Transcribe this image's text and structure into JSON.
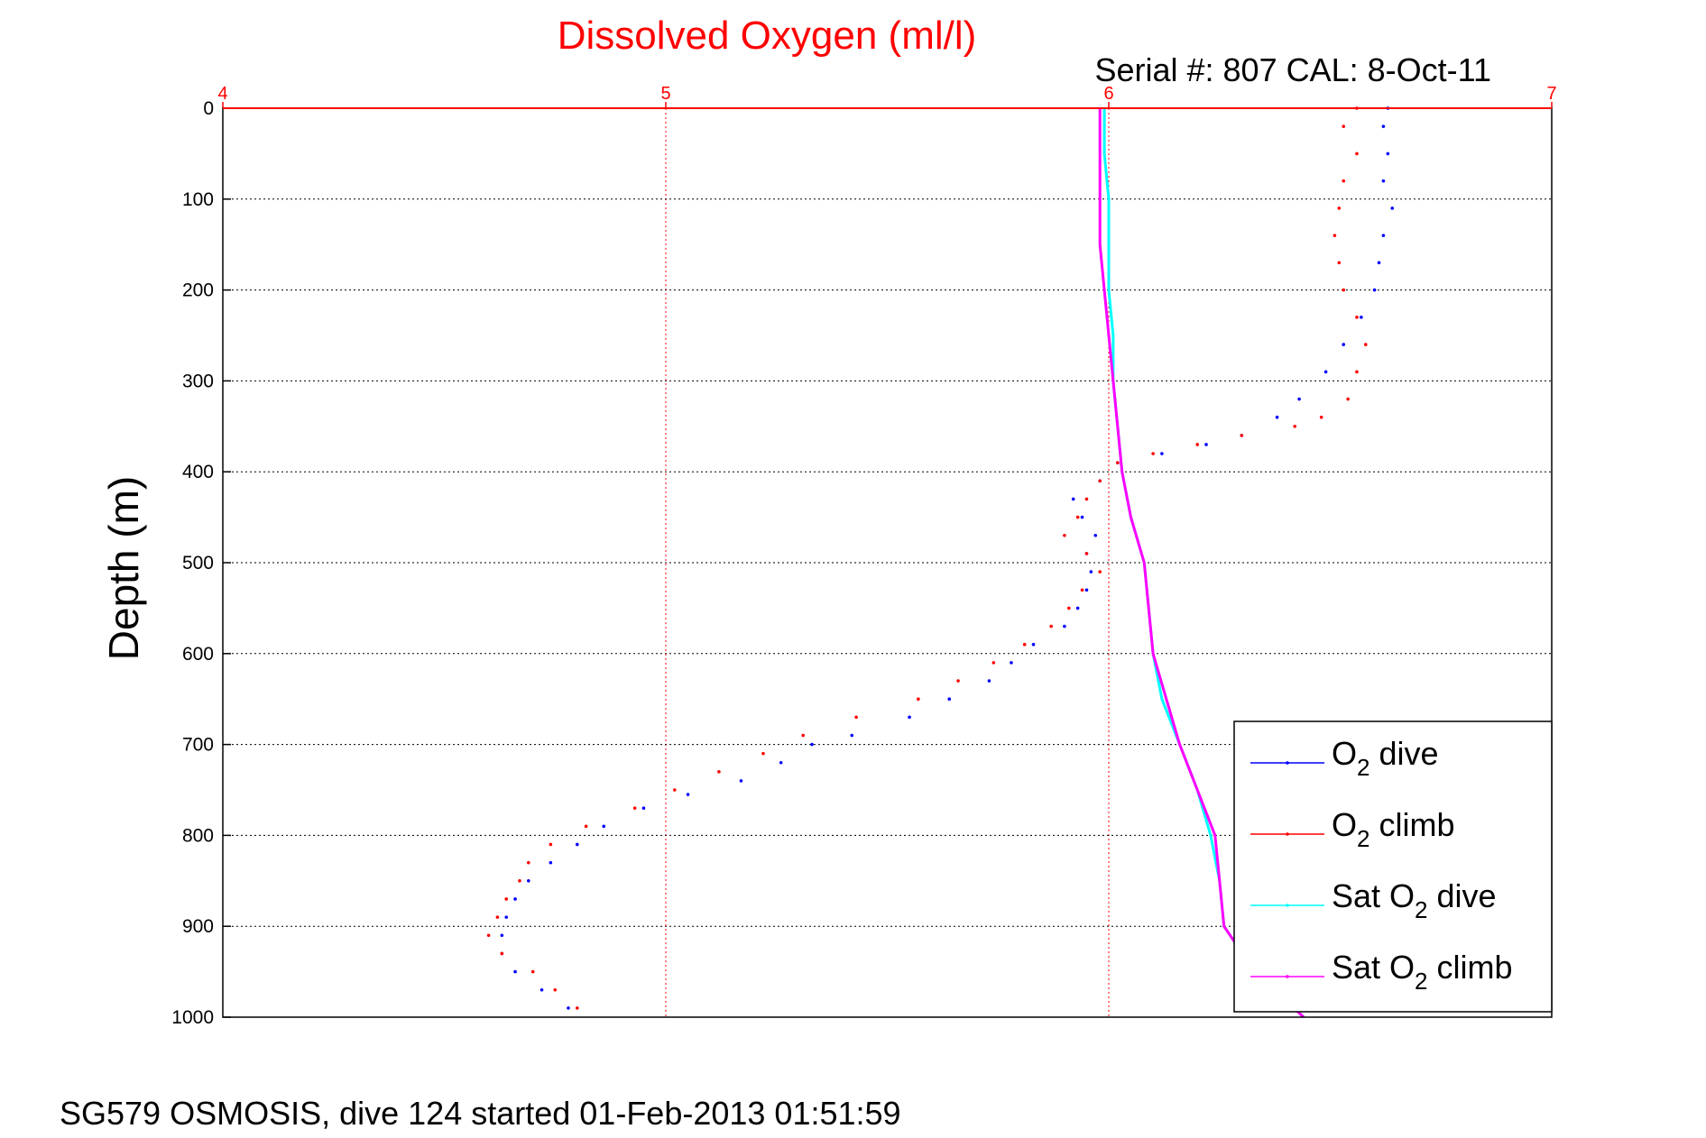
{
  "chart_data": {
    "type": "scatter",
    "title": "Dissolved Oxygen (ml/l)",
    "subtitle": "Serial #: 807  CAL: 8-Oct-11",
    "ylabel": "Depth (m)",
    "xlabel": "",
    "footer": "SG579 OSMOSIS, dive 124 started 01-Feb-2013 01:51:59",
    "xlim": [
      4,
      7
    ],
    "ylim": [
      0,
      1000
    ],
    "y_reversed": true,
    "x_axis_position": "top",
    "grid": true,
    "legend_position": "bottom-right",
    "x_ticks": [
      "4",
      "5",
      "6",
      "7"
    ],
    "y_ticks": [
      "0",
      "100",
      "200",
      "300",
      "400",
      "500",
      "600",
      "700",
      "800",
      "900",
      "1000"
    ],
    "series": [
      {
        "name": "O2 dive",
        "label_main": "O",
        "label_sub": "2",
        "label_rest": " dive",
        "color": "#0000ff",
        "style": "dots",
        "points": [
          [
            6.63,
            0
          ],
          [
            6.62,
            20
          ],
          [
            6.63,
            50
          ],
          [
            6.62,
            80
          ],
          [
            6.64,
            110
          ],
          [
            6.62,
            140
          ],
          [
            6.61,
            170
          ],
          [
            6.6,
            200
          ],
          [
            6.57,
            230
          ],
          [
            6.53,
            260
          ],
          [
            6.49,
            290
          ],
          [
            6.43,
            320
          ],
          [
            6.38,
            340
          ],
          [
            6.3,
            360
          ],
          [
            6.22,
            370
          ],
          [
            6.12,
            380
          ],
          [
            6.02,
            390
          ],
          [
            5.98,
            410
          ],
          [
            5.92,
            430
          ],
          [
            5.94,
            450
          ],
          [
            5.97,
            470
          ],
          [
            5.95,
            490
          ],
          [
            5.96,
            510
          ],
          [
            5.95,
            530
          ],
          [
            5.93,
            550
          ],
          [
            5.9,
            570
          ],
          [
            5.83,
            590
          ],
          [
            5.78,
            610
          ],
          [
            5.73,
            630
          ],
          [
            5.64,
            650
          ],
          [
            5.55,
            670
          ],
          [
            5.42,
            690
          ],
          [
            5.33,
            700
          ],
          [
            5.26,
            720
          ],
          [
            5.17,
            740
          ],
          [
            5.05,
            755
          ],
          [
            4.95,
            770
          ],
          [
            4.86,
            790
          ],
          [
            4.8,
            810
          ],
          [
            4.74,
            830
          ],
          [
            4.69,
            850
          ],
          [
            4.66,
            870
          ],
          [
            4.64,
            890
          ],
          [
            4.63,
            910
          ],
          [
            4.63,
            930
          ],
          [
            4.66,
            950
          ],
          [
            4.72,
            970
          ],
          [
            4.78,
            990
          ]
        ]
      },
      {
        "name": "O2 climb",
        "label_main": "O",
        "label_sub": "2",
        "label_rest": " climb",
        "color": "#ff0000",
        "style": "dots",
        "points": [
          [
            6.56,
            0
          ],
          [
            6.53,
            20
          ],
          [
            6.56,
            50
          ],
          [
            6.53,
            80
          ],
          [
            6.52,
            110
          ],
          [
            6.51,
            140
          ],
          [
            6.52,
            170
          ],
          [
            6.53,
            200
          ],
          [
            6.56,
            230
          ],
          [
            6.58,
            260
          ],
          [
            6.56,
            290
          ],
          [
            6.54,
            320
          ],
          [
            6.48,
            340
          ],
          [
            6.42,
            350
          ],
          [
            6.3,
            360
          ],
          [
            6.2,
            370
          ],
          [
            6.1,
            380
          ],
          [
            6.02,
            390
          ],
          [
            5.98,
            410
          ],
          [
            5.95,
            430
          ],
          [
            5.93,
            450
          ],
          [
            5.9,
            470
          ],
          [
            5.95,
            490
          ],
          [
            5.98,
            510
          ],
          [
            5.94,
            530
          ],
          [
            5.91,
            550
          ],
          [
            5.87,
            570
          ],
          [
            5.81,
            590
          ],
          [
            5.74,
            610
          ],
          [
            5.66,
            630
          ],
          [
            5.57,
            650
          ],
          [
            5.43,
            670
          ],
          [
            5.31,
            690
          ],
          [
            5.22,
            710
          ],
          [
            5.12,
            730
          ],
          [
            5.02,
            750
          ],
          [
            4.93,
            770
          ],
          [
            4.82,
            790
          ],
          [
            4.74,
            810
          ],
          [
            4.69,
            830
          ],
          [
            4.67,
            850
          ],
          [
            4.64,
            870
          ],
          [
            4.62,
            890
          ],
          [
            4.6,
            910
          ],
          [
            4.63,
            930
          ],
          [
            4.7,
            950
          ],
          [
            4.75,
            970
          ],
          [
            4.8,
            990
          ]
        ]
      },
      {
        "name": "Sat O2 dive",
        "label_main": "Sat O",
        "label_sub": "2",
        "label_rest": " dive",
        "color": "#00ffff",
        "style": "line",
        "points": [
          [
            5.99,
            0
          ],
          [
            5.99,
            50
          ],
          [
            6.0,
            100
          ],
          [
            6.0,
            150
          ],
          [
            6.0,
            200
          ],
          [
            6.01,
            250
          ],
          [
            6.01,
            300
          ],
          [
            6.02,
            350
          ],
          [
            6.03,
            400
          ],
          [
            6.05,
            450
          ],
          [
            6.08,
            500
          ],
          [
            6.09,
            550
          ],
          [
            6.1,
            600
          ],
          [
            6.12,
            650
          ],
          [
            6.16,
            700
          ],
          [
            6.2,
            750
          ],
          [
            6.23,
            800
          ],
          [
            6.25,
            850
          ],
          [
            6.26,
            900
          ],
          [
            6.33,
            950
          ],
          [
            6.44,
            1000
          ]
        ]
      },
      {
        "name": "Sat O2 climb",
        "label_main": "Sat O",
        "label_sub": "2",
        "label_rest": " climb",
        "color": "#ff00ff",
        "style": "line",
        "points": [
          [
            5.98,
            0
          ],
          [
            5.98,
            50
          ],
          [
            5.98,
            100
          ],
          [
            5.98,
            150
          ],
          [
            5.99,
            200
          ],
          [
            6.0,
            250
          ],
          [
            6.01,
            300
          ],
          [
            6.02,
            350
          ],
          [
            6.03,
            400
          ],
          [
            6.05,
            450
          ],
          [
            6.08,
            500
          ],
          [
            6.09,
            550
          ],
          [
            6.1,
            600
          ],
          [
            6.13,
            650
          ],
          [
            6.16,
            700
          ],
          [
            6.2,
            750
          ],
          [
            6.24,
            800
          ],
          [
            6.25,
            850
          ],
          [
            6.26,
            900
          ],
          [
            6.33,
            950
          ],
          [
            6.44,
            1000
          ]
        ]
      }
    ]
  }
}
